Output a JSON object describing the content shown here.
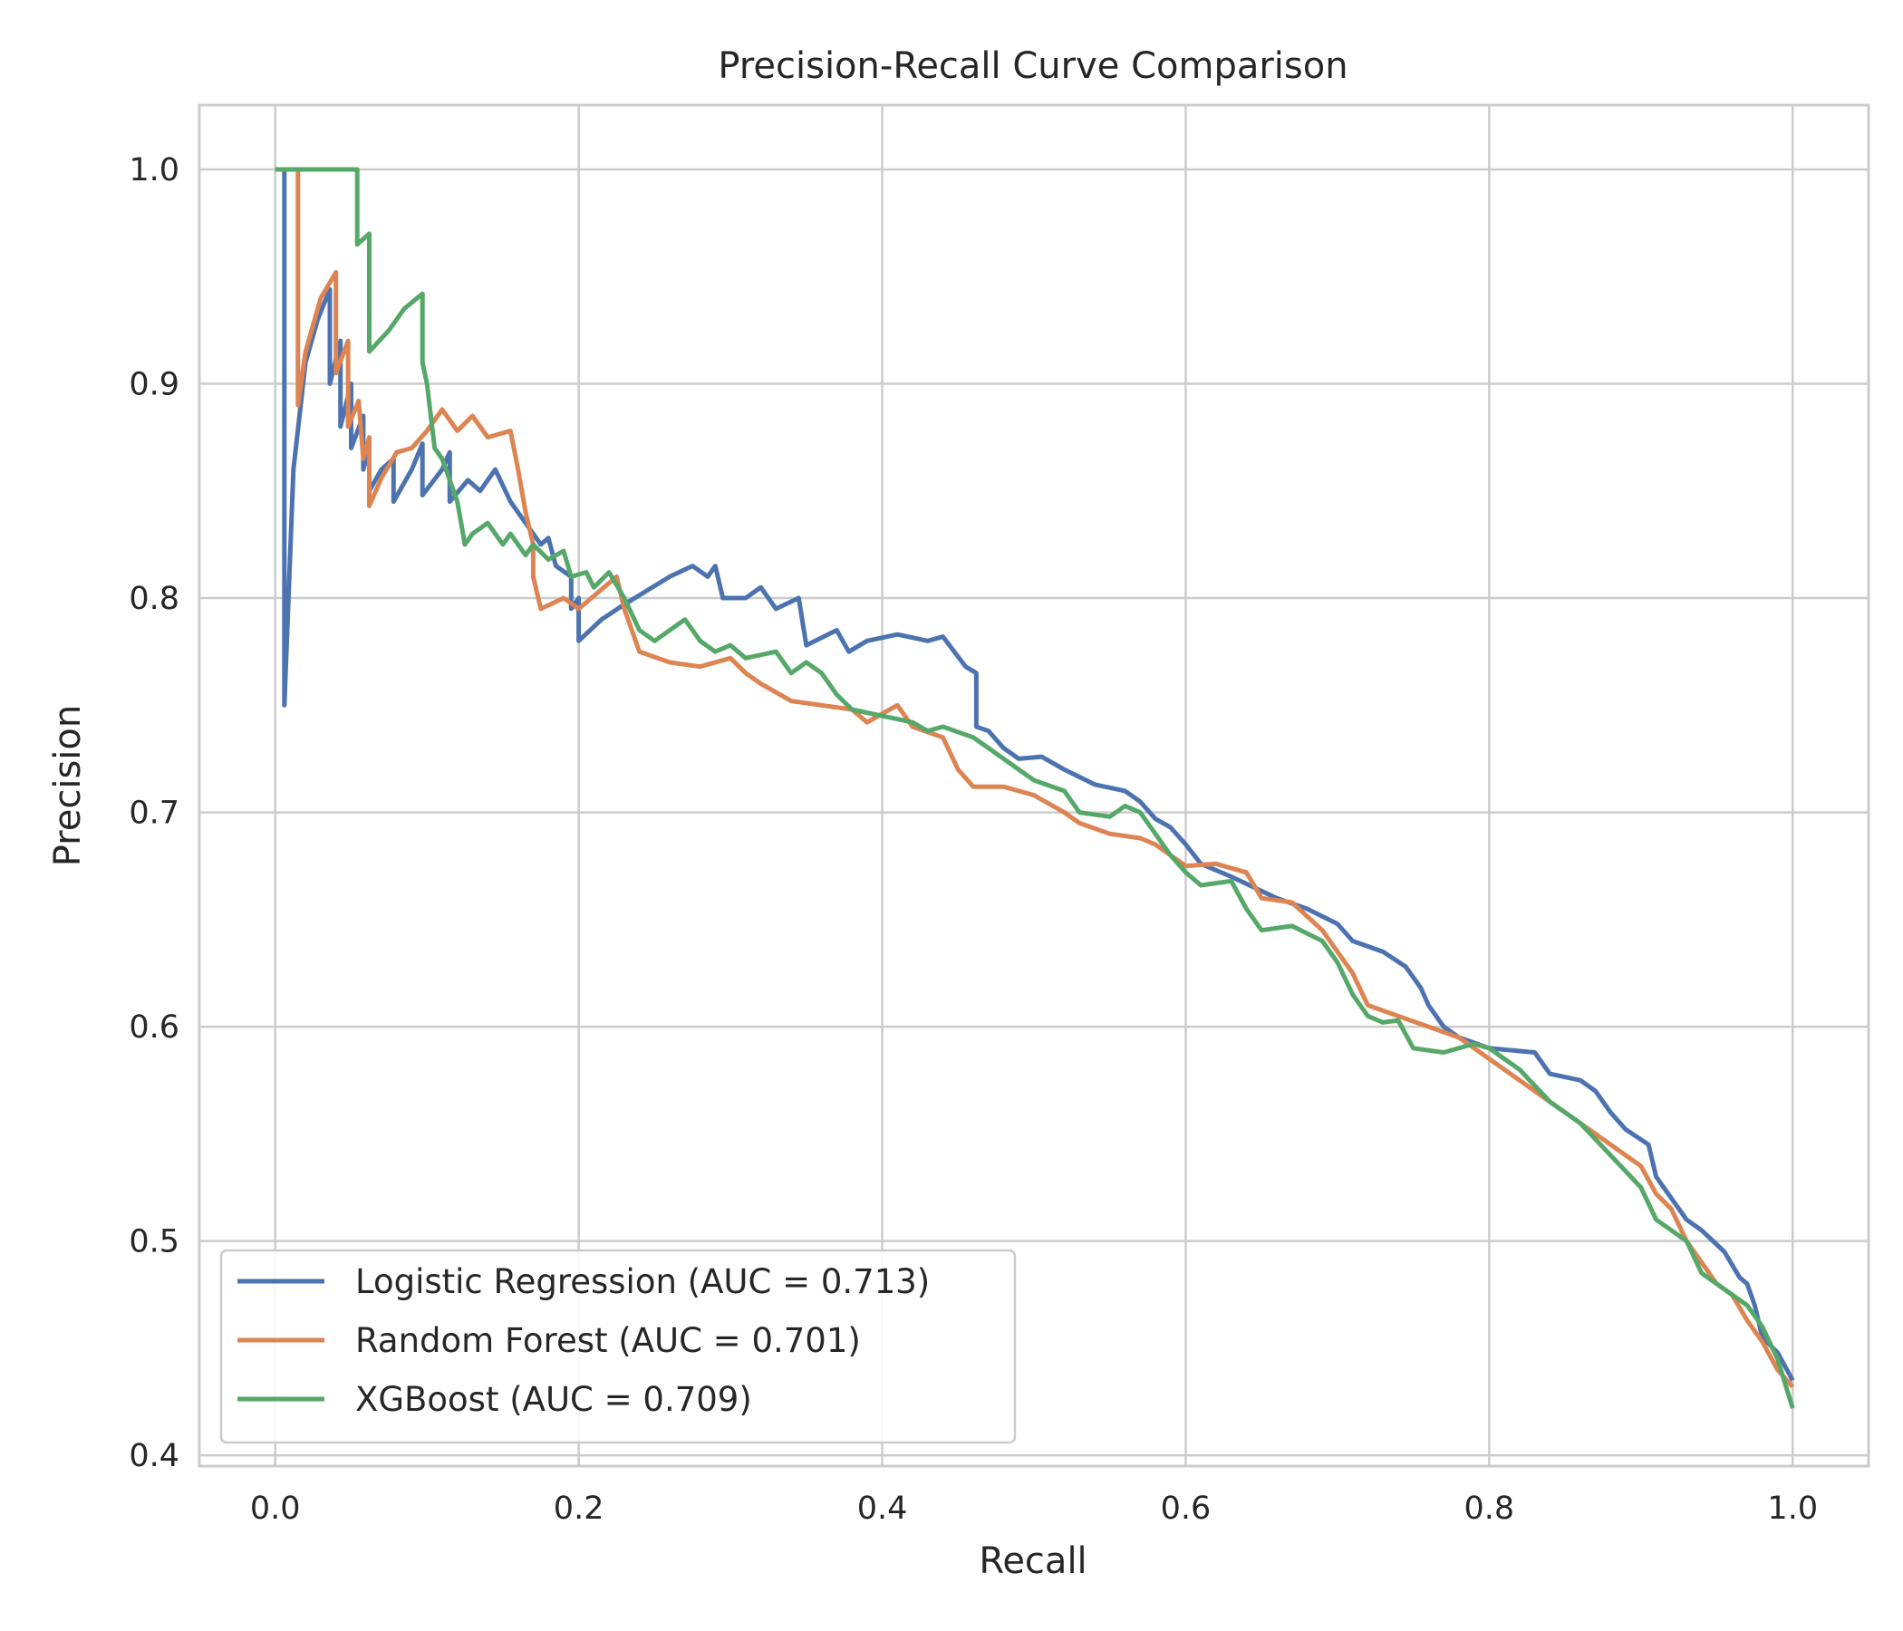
{
  "chart_data": {
    "type": "line",
    "title": "Precision-Recall Curve Comparison",
    "xlabel": "Recall",
    "ylabel": "Precision",
    "xlim": [
      -0.05,
      1.05
    ],
    "ylim": [
      0.395,
      1.03
    ],
    "xticks": [
      0.0,
      0.2,
      0.4,
      0.6,
      0.8,
      1.0
    ],
    "yticks": [
      0.4,
      0.5,
      0.6,
      0.7,
      0.8,
      0.9,
      1.0
    ],
    "xtick_labels": [
      "0.0",
      "0.2",
      "0.4",
      "0.6",
      "0.8",
      "1.0"
    ],
    "ytick_labels": [
      "0.4",
      "0.5",
      "0.6",
      "0.7",
      "0.8",
      "0.9",
      "1.0"
    ],
    "grid": true,
    "legend_position": "lower-left",
    "series": [
      {
        "name": "Logistic Regression (AUC = 0.713)",
        "color": "#4c72b0",
        "points": [
          [
            0.0,
            1.0
          ],
          [
            0.006,
            1.0
          ],
          [
            0.006,
            0.75
          ],
          [
            0.012,
            0.86
          ],
          [
            0.02,
            0.91
          ],
          [
            0.028,
            0.93
          ],
          [
            0.036,
            0.944
          ],
          [
            0.036,
            0.9
          ],
          [
            0.043,
            0.92
          ],
          [
            0.043,
            0.88
          ],
          [
            0.05,
            0.9
          ],
          [
            0.05,
            0.87
          ],
          [
            0.058,
            0.885
          ],
          [
            0.058,
            0.86
          ],
          [
            0.062,
            0.87
          ],
          [
            0.062,
            0.85
          ],
          [
            0.07,
            0.86
          ],
          [
            0.078,
            0.865
          ],
          [
            0.078,
            0.845
          ],
          [
            0.09,
            0.86
          ],
          [
            0.097,
            0.872
          ],
          [
            0.097,
            0.848
          ],
          [
            0.11,
            0.86
          ],
          [
            0.115,
            0.868
          ],
          [
            0.115,
            0.845
          ],
          [
            0.127,
            0.855
          ],
          [
            0.135,
            0.85
          ],
          [
            0.145,
            0.86
          ],
          [
            0.155,
            0.845
          ],
          [
            0.165,
            0.835
          ],
          [
            0.175,
            0.825
          ],
          [
            0.18,
            0.828
          ],
          [
            0.185,
            0.815
          ],
          [
            0.195,
            0.81
          ],
          [
            0.195,
            0.795
          ],
          [
            0.2,
            0.8
          ],
          [
            0.2,
            0.78
          ],
          [
            0.215,
            0.79
          ],
          [
            0.23,
            0.797
          ],
          [
            0.26,
            0.81
          ],
          [
            0.275,
            0.815
          ],
          [
            0.285,
            0.81
          ],
          [
            0.29,
            0.815
          ],
          [
            0.295,
            0.8
          ],
          [
            0.31,
            0.8
          ],
          [
            0.32,
            0.805
          ],
          [
            0.33,
            0.795
          ],
          [
            0.345,
            0.8
          ],
          [
            0.35,
            0.778
          ],
          [
            0.37,
            0.785
          ],
          [
            0.378,
            0.775
          ],
          [
            0.39,
            0.78
          ],
          [
            0.41,
            0.783
          ],
          [
            0.43,
            0.78
          ],
          [
            0.44,
            0.782
          ],
          [
            0.455,
            0.768
          ],
          [
            0.462,
            0.765
          ],
          [
            0.462,
            0.74
          ],
          [
            0.47,
            0.738
          ],
          [
            0.48,
            0.73
          ],
          [
            0.49,
            0.725
          ],
          [
            0.505,
            0.726
          ],
          [
            0.52,
            0.72
          ],
          [
            0.54,
            0.713
          ],
          [
            0.56,
            0.71
          ],
          [
            0.57,
            0.705
          ],
          [
            0.58,
            0.697
          ],
          [
            0.59,
            0.693
          ],
          [
            0.6,
            0.685
          ],
          [
            0.61,
            0.676
          ],
          [
            0.63,
            0.67
          ],
          [
            0.645,
            0.665
          ],
          [
            0.66,
            0.66
          ],
          [
            0.68,
            0.655
          ],
          [
            0.7,
            0.648
          ],
          [
            0.71,
            0.64
          ],
          [
            0.73,
            0.635
          ],
          [
            0.745,
            0.628
          ],
          [
            0.755,
            0.618
          ],
          [
            0.76,
            0.61
          ],
          [
            0.77,
            0.6
          ],
          [
            0.78,
            0.595
          ],
          [
            0.8,
            0.59
          ],
          [
            0.83,
            0.588
          ],
          [
            0.84,
            0.578
          ],
          [
            0.86,
            0.575
          ],
          [
            0.87,
            0.57
          ],
          [
            0.88,
            0.56
          ],
          [
            0.89,
            0.552
          ],
          [
            0.905,
            0.545
          ],
          [
            0.91,
            0.53
          ],
          [
            0.92,
            0.52
          ],
          [
            0.93,
            0.51
          ],
          [
            0.94,
            0.505
          ],
          [
            0.955,
            0.495
          ],
          [
            0.965,
            0.483
          ],
          [
            0.97,
            0.48
          ],
          [
            0.975,
            0.47
          ],
          [
            0.98,
            0.455
          ],
          [
            0.99,
            0.448
          ],
          [
            1.0,
            0.435
          ]
        ]
      },
      {
        "name": "Random Forest (AUC = 0.701)",
        "color": "#dd8452",
        "points": [
          [
            0.015,
            1.0
          ],
          [
            0.015,
            0.89
          ],
          [
            0.02,
            0.915
          ],
          [
            0.03,
            0.94
          ],
          [
            0.04,
            0.952
          ],
          [
            0.04,
            0.905
          ],
          [
            0.048,
            0.92
          ],
          [
            0.048,
            0.88
          ],
          [
            0.055,
            0.892
          ],
          [
            0.058,
            0.865
          ],
          [
            0.062,
            0.875
          ],
          [
            0.062,
            0.843
          ],
          [
            0.07,
            0.856
          ],
          [
            0.08,
            0.868
          ],
          [
            0.09,
            0.87
          ],
          [
            0.1,
            0.878
          ],
          [
            0.11,
            0.888
          ],
          [
            0.12,
            0.878
          ],
          [
            0.13,
            0.885
          ],
          [
            0.14,
            0.875
          ],
          [
            0.155,
            0.878
          ],
          [
            0.16,
            0.86
          ],
          [
            0.165,
            0.84
          ],
          [
            0.17,
            0.825
          ],
          [
            0.17,
            0.81
          ],
          [
            0.175,
            0.795
          ],
          [
            0.19,
            0.8
          ],
          [
            0.2,
            0.795
          ],
          [
            0.225,
            0.81
          ],
          [
            0.23,
            0.795
          ],
          [
            0.24,
            0.775
          ],
          [
            0.26,
            0.77
          ],
          [
            0.28,
            0.768
          ],
          [
            0.3,
            0.772
          ],
          [
            0.31,
            0.765
          ],
          [
            0.32,
            0.76
          ],
          [
            0.34,
            0.752
          ],
          [
            0.36,
            0.75
          ],
          [
            0.38,
            0.748
          ],
          [
            0.39,
            0.742
          ],
          [
            0.41,
            0.75
          ],
          [
            0.42,
            0.74
          ],
          [
            0.44,
            0.735
          ],
          [
            0.45,
            0.72
          ],
          [
            0.46,
            0.712
          ],
          [
            0.48,
            0.712
          ],
          [
            0.5,
            0.708
          ],
          [
            0.52,
            0.7
          ],
          [
            0.53,
            0.695
          ],
          [
            0.55,
            0.69
          ],
          [
            0.57,
            0.688
          ],
          [
            0.58,
            0.685
          ],
          [
            0.6,
            0.675
          ],
          [
            0.62,
            0.676
          ],
          [
            0.64,
            0.672
          ],
          [
            0.65,
            0.66
          ],
          [
            0.67,
            0.658
          ],
          [
            0.69,
            0.645
          ],
          [
            0.7,
            0.635
          ],
          [
            0.71,
            0.625
          ],
          [
            0.72,
            0.61
          ],
          [
            0.74,
            0.605
          ],
          [
            0.76,
            0.6
          ],
          [
            0.78,
            0.595
          ],
          [
            0.8,
            0.585
          ],
          [
            0.82,
            0.575
          ],
          [
            0.84,
            0.565
          ],
          [
            0.86,
            0.555
          ],
          [
            0.88,
            0.545
          ],
          [
            0.9,
            0.535
          ],
          [
            0.91,
            0.522
          ],
          [
            0.92,
            0.515
          ],
          [
            0.93,
            0.5
          ],
          [
            0.94,
            0.49
          ],
          [
            0.95,
            0.48
          ],
          [
            0.96,
            0.475
          ],
          [
            0.97,
            0.463
          ],
          [
            0.98,
            0.453
          ],
          [
            0.99,
            0.44
          ],
          [
            1.0,
            0.432
          ]
        ]
      },
      {
        "name": "XGBoost (AUC = 0.709)",
        "color": "#55a868",
        "points": [
          [
            0.0,
            1.0
          ],
          [
            0.054,
            1.0
          ],
          [
            0.054,
            0.965
          ],
          [
            0.062,
            0.97
          ],
          [
            0.062,
            0.915
          ],
          [
            0.075,
            0.925
          ],
          [
            0.085,
            0.935
          ],
          [
            0.097,
            0.942
          ],
          [
            0.097,
            0.91
          ],
          [
            0.1,
            0.9
          ],
          [
            0.105,
            0.87
          ],
          [
            0.11,
            0.865
          ],
          [
            0.12,
            0.845
          ],
          [
            0.125,
            0.825
          ],
          [
            0.13,
            0.83
          ],
          [
            0.14,
            0.835
          ],
          [
            0.15,
            0.825
          ],
          [
            0.155,
            0.83
          ],
          [
            0.165,
            0.82
          ],
          [
            0.17,
            0.825
          ],
          [
            0.18,
            0.818
          ],
          [
            0.19,
            0.822
          ],
          [
            0.195,
            0.81
          ],
          [
            0.205,
            0.812
          ],
          [
            0.21,
            0.805
          ],
          [
            0.22,
            0.812
          ],
          [
            0.23,
            0.8
          ],
          [
            0.24,
            0.785
          ],
          [
            0.25,
            0.78
          ],
          [
            0.26,
            0.785
          ],
          [
            0.27,
            0.79
          ],
          [
            0.28,
            0.78
          ],
          [
            0.29,
            0.775
          ],
          [
            0.3,
            0.778
          ],
          [
            0.31,
            0.772
          ],
          [
            0.33,
            0.775
          ],
          [
            0.34,
            0.765
          ],
          [
            0.35,
            0.77
          ],
          [
            0.36,
            0.765
          ],
          [
            0.37,
            0.755
          ],
          [
            0.38,
            0.748
          ],
          [
            0.4,
            0.745
          ],
          [
            0.42,
            0.742
          ],
          [
            0.43,
            0.738
          ],
          [
            0.44,
            0.74
          ],
          [
            0.46,
            0.735
          ],
          [
            0.47,
            0.73
          ],
          [
            0.49,
            0.72
          ],
          [
            0.5,
            0.715
          ],
          [
            0.52,
            0.71
          ],
          [
            0.53,
            0.7
          ],
          [
            0.55,
            0.698
          ],
          [
            0.56,
            0.703
          ],
          [
            0.57,
            0.7
          ],
          [
            0.58,
            0.69
          ],
          [
            0.59,
            0.68
          ],
          [
            0.6,
            0.672
          ],
          [
            0.61,
            0.666
          ],
          [
            0.63,
            0.668
          ],
          [
            0.64,
            0.655
          ],
          [
            0.65,
            0.645
          ],
          [
            0.67,
            0.647
          ],
          [
            0.69,
            0.64
          ],
          [
            0.7,
            0.63
          ],
          [
            0.71,
            0.615
          ],
          [
            0.72,
            0.605
          ],
          [
            0.73,
            0.602
          ],
          [
            0.74,
            0.603
          ],
          [
            0.75,
            0.59
          ],
          [
            0.77,
            0.588
          ],
          [
            0.79,
            0.592
          ],
          [
            0.8,
            0.59
          ],
          [
            0.82,
            0.58
          ],
          [
            0.84,
            0.565
          ],
          [
            0.86,
            0.555
          ],
          [
            0.88,
            0.54
          ],
          [
            0.9,
            0.525
          ],
          [
            0.91,
            0.51
          ],
          [
            0.93,
            0.5
          ],
          [
            0.94,
            0.485
          ],
          [
            0.96,
            0.475
          ],
          [
            0.97,
            0.47
          ],
          [
            0.98,
            0.46
          ],
          [
            0.99,
            0.445
          ],
          [
            1.0,
            0.422
          ]
        ]
      }
    ]
  }
}
